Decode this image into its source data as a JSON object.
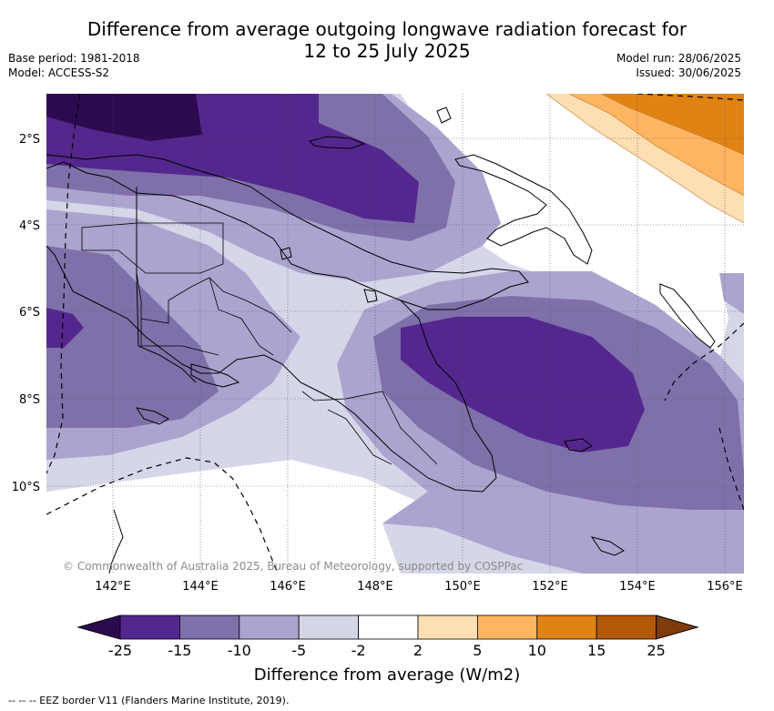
{
  "title_line1": "Difference from average outgoing longwave radiation forecast for",
  "title_line2": "12 to 25 July 2025",
  "base_period": "Base period: 1981-2018",
  "model": "Model: ACCESS-S2",
  "model_run": "Model run: 28/06/2025",
  "issued": "Issued: 30/06/2025",
  "lon_labels": [
    "142°E",
    "144°E",
    "146°E",
    "148°E",
    "150°E",
    "152°E",
    "154°E",
    "156°E"
  ],
  "lat_labels": [
    "2°S",
    "4°S",
    "6°S",
    "8°S",
    "10°S"
  ],
  "copyright": "© Commonwealth of Australia 2025, Bureau of Meteorology, supported by COSPPac",
  "colorbar": {
    "title": "Difference from average (W/m2)",
    "tick_labels": [
      "-25",
      "-15",
      "-10",
      "-5",
      "-2",
      "2",
      "5",
      "10",
      "15",
      "25"
    ],
    "colors": {
      "below_min": "#2d0a50",
      "bin_minus25_minus15": "#54278f",
      "bin_minus15_minus10": "#7f70aa",
      "bin_minus10_minus5": "#aba4cf",
      "bin_minus5_minus2": "#d6d6e9",
      "bin_minus2_2": "#ffffff",
      "bin_2_5": "#fedeb3",
      "bin_5_10": "#fdb562",
      "bin_10_15": "#e08214",
      "bin_15_25": "#b35806",
      "above_max": "#7f3b08"
    }
  },
  "legend_note": "-- -- -- EEZ border V11 (Flanders Marine Institute, 2019)."
}
